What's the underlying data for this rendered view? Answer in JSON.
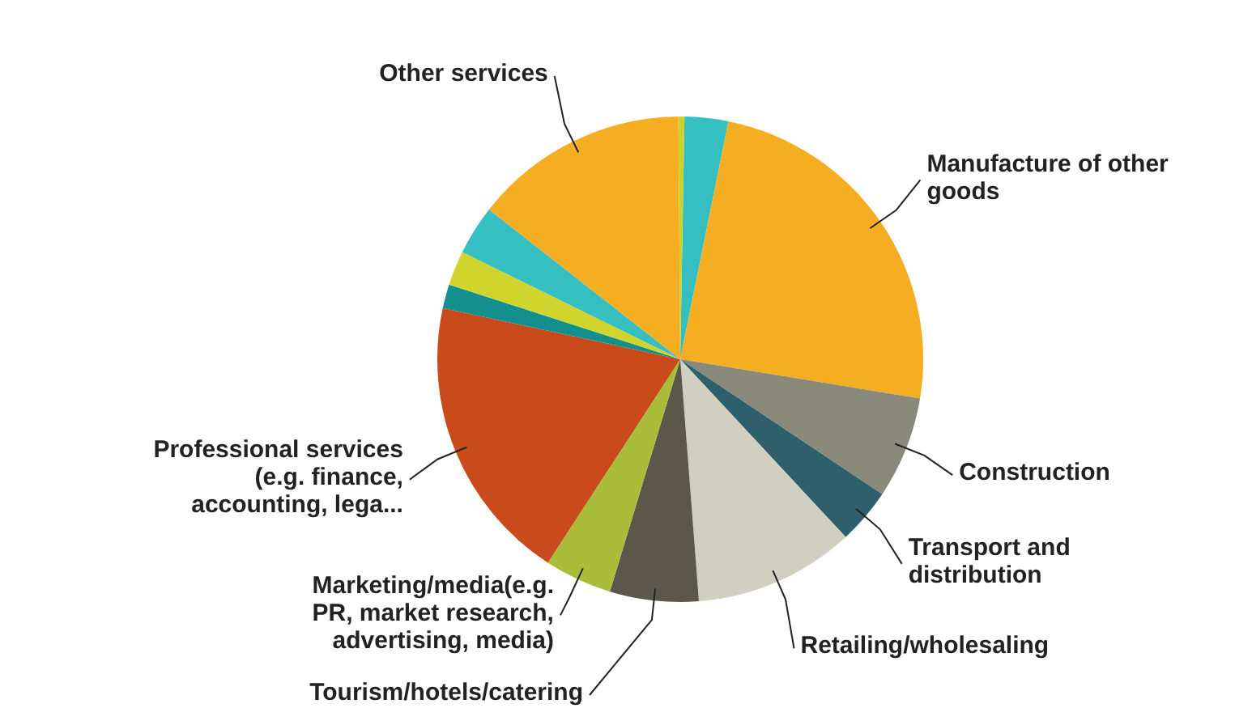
{
  "chart_data": {
    "type": "pie",
    "categories": [
      null,
      "Manufacture of other goods",
      "Construction",
      "Transport and distribution",
      "Retailing/wholesaling",
      "Tourism/hotels/catering",
      "Marketing/media(e.g. PR, market research, advertising, media)",
      "Professional services (e.g. finance, accounting, lega...",
      null,
      null,
      null,
      "Other services",
      null
    ],
    "values": [
      2.9,
      24.4,
      6.8,
      3.7,
      10.7,
      5.9,
      4.5,
      19.2,
      1.6,
      2.3,
      3.3,
      14.3,
      0.4
    ],
    "colors": [
      "#35bfc1",
      "#f5ae22",
      "#8a8a7a",
      "#2e5f6b",
      "#d1cfc0",
      "#5b584b",
      "#a9bd3a",
      "#c94a1a",
      "#13908d",
      "#cfd52d",
      "#35bfc1",
      "#f5ae22",
      "#c8d42c"
    ],
    "legend": false
  }
}
